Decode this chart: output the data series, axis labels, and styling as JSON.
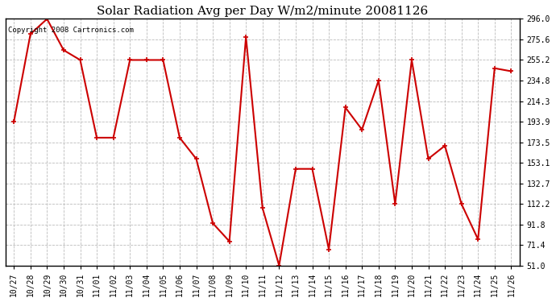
{
  "title": "Solar Radiation Avg per Day W/m2/minute 20081126",
  "copyright": "Copyright 2008 Cartronics.com",
  "labels": [
    "10/27",
    "10/28",
    "10/29",
    "10/30",
    "10/31",
    "11/01",
    "11/02",
    "11/03",
    "11/04",
    "11/05",
    "11/06",
    "11/07",
    "11/08",
    "11/09",
    "11/10",
    "11/11",
    "11/12",
    "11/13",
    "11/14",
    "11/15",
    "11/16",
    "11/17",
    "11/18",
    "11/19",
    "11/20",
    "11/21",
    "11/22",
    "11/23",
    "11/24",
    "11/25",
    "11/26"
  ],
  "values": [
    193.9,
    281.0,
    296.0,
    265.0,
    255.2,
    178.0,
    178.0,
    255.2,
    255.2,
    255.2,
    178.0,
    157.0,
    93.0,
    75.0,
    278.0,
    108.0,
    51.0,
    147.0,
    147.0,
    67.0,
    208.0,
    186.0,
    234.8,
    112.2,
    255.2,
    157.0,
    170.0,
    112.2,
    77.0,
    247.0,
    244.0
  ],
  "line_color": "#cc0000",
  "marker": "+",
  "marker_size": 5,
  "marker_linewidth": 1.2,
  "line_width": 1.5,
  "background_color": "#ffffff",
  "grid_color": "#bbbbbb",
  "grid_linestyle": "--",
  "ylim": [
    51.0,
    296.0
  ],
  "yticks": [
    51.0,
    71.4,
    91.8,
    112.2,
    132.7,
    153.1,
    173.5,
    193.9,
    214.3,
    234.8,
    255.2,
    275.6,
    296.0
  ],
  "title_fontsize": 11,
  "tick_fontsize": 7,
  "copyright_fontsize": 6.5,
  "border_color": "#000000"
}
